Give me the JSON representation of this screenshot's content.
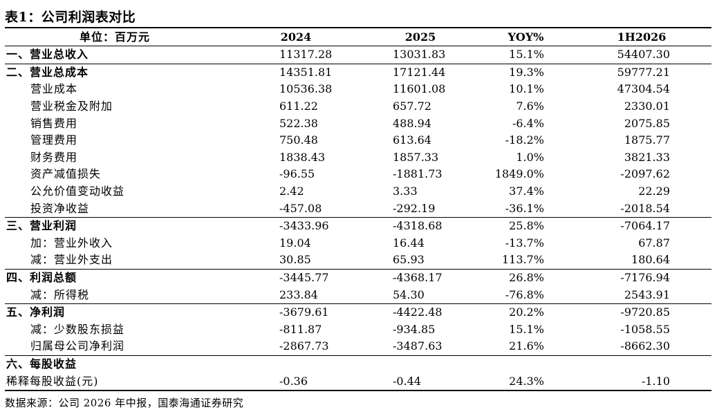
{
  "title": "表1：公司利润表对比",
  "header": {
    "unit": "单位：百万元",
    "col1": "2024",
    "col2": "2025",
    "col3": "YOY%",
    "col4": "1H2026"
  },
  "rows": [
    {
      "label": "一、营业总收入",
      "v1": "11317.28",
      "v2": "13031.83",
      "v3": "15.1%",
      "v4": "54407.30"
    },
    {
      "label": "二、营业总成本",
      "v1": "14351.81",
      "v2": "17121.44",
      "v3": "19.3%",
      "v4": "59777.21"
    },
    {
      "label": "营业成本",
      "v1": "10536.38",
      "v2": "11601.08",
      "v3": "10.1%",
      "v4": "47304.54"
    },
    {
      "label": "营业税金及附加",
      "v1": "611.22",
      "v2": "657.72",
      "v3": "7.6%",
      "v4": "2330.01"
    },
    {
      "label": "销售费用",
      "v1": "522.38",
      "v2": "488.94",
      "v3": "-6.4%",
      "v4": "2075.85"
    },
    {
      "label": "管理费用",
      "v1": "750.48",
      "v2": "613.64",
      "v3": "-18.2%",
      "v4": "1875.77"
    },
    {
      "label": "财务费用",
      "v1": "1838.43",
      "v2": "1857.33",
      "v3": "1.0%",
      "v4": "3821.33"
    },
    {
      "label": "资产减值损失",
      "v1": "-96.55",
      "v2": "-1881.73",
      "v3": "1849.0%",
      "v4": "-2097.62"
    },
    {
      "label": "公允价值变动收益",
      "v1": "2.42",
      "v2": "3.33",
      "v3": "37.4%",
      "v4": "22.29"
    },
    {
      "label": "投资净收益",
      "v1": "-457.08",
      "v2": "-292.19",
      "v3": "-36.1%",
      "v4": "-2018.54"
    },
    {
      "label": "三、营业利润",
      "v1": "-3433.96",
      "v2": "-4318.68",
      "v3": "25.8%",
      "v4": "-7064.17"
    },
    {
      "label": "加：营业外收入",
      "v1": "19.04",
      "v2": "16.44",
      "v3": "-13.7%",
      "v4": "67.87"
    },
    {
      "label": "减：营业外支出",
      "v1": "30.85",
      "v2": "65.93",
      "v3": "113.7%",
      "v4": "180.64"
    },
    {
      "label": "四、利润总额",
      "v1": "-3445.77",
      "v2": "-4368.17",
      "v3": "26.8%",
      "v4": "-7176.94"
    },
    {
      "label": "减：所得税",
      "v1": "233.84",
      "v2": "54.30",
      "v3": "-76.8%",
      "v4": "2543.91"
    },
    {
      "label": "五、净利润",
      "v1": "-3679.61",
      "v2": "-4422.48",
      "v3": "20.2%",
      "v4": "-9720.85"
    },
    {
      "label": "减：少数股东损益",
      "v1": "-811.87",
      "v2": "-934.85",
      "v3": "15.1%",
      "v4": "-1058.55"
    },
    {
      "label": "归属母公司净利润",
      "v1": "-2867.73",
      "v2": "-3487.63",
      "v3": "21.6%",
      "v4": "-8662.30"
    },
    {
      "label": "六、每股收益",
      "v1": "",
      "v2": "",
      "v3": "",
      "v4": ""
    },
    {
      "label": "稀释每股收益(元)",
      "v1": "-0.36",
      "v2": "-0.44",
      "v3": "24.3%",
      "v4": "-1.10"
    }
  ],
  "source": "数据来源：公司 2026 年中报，国泰海通证券研究"
}
